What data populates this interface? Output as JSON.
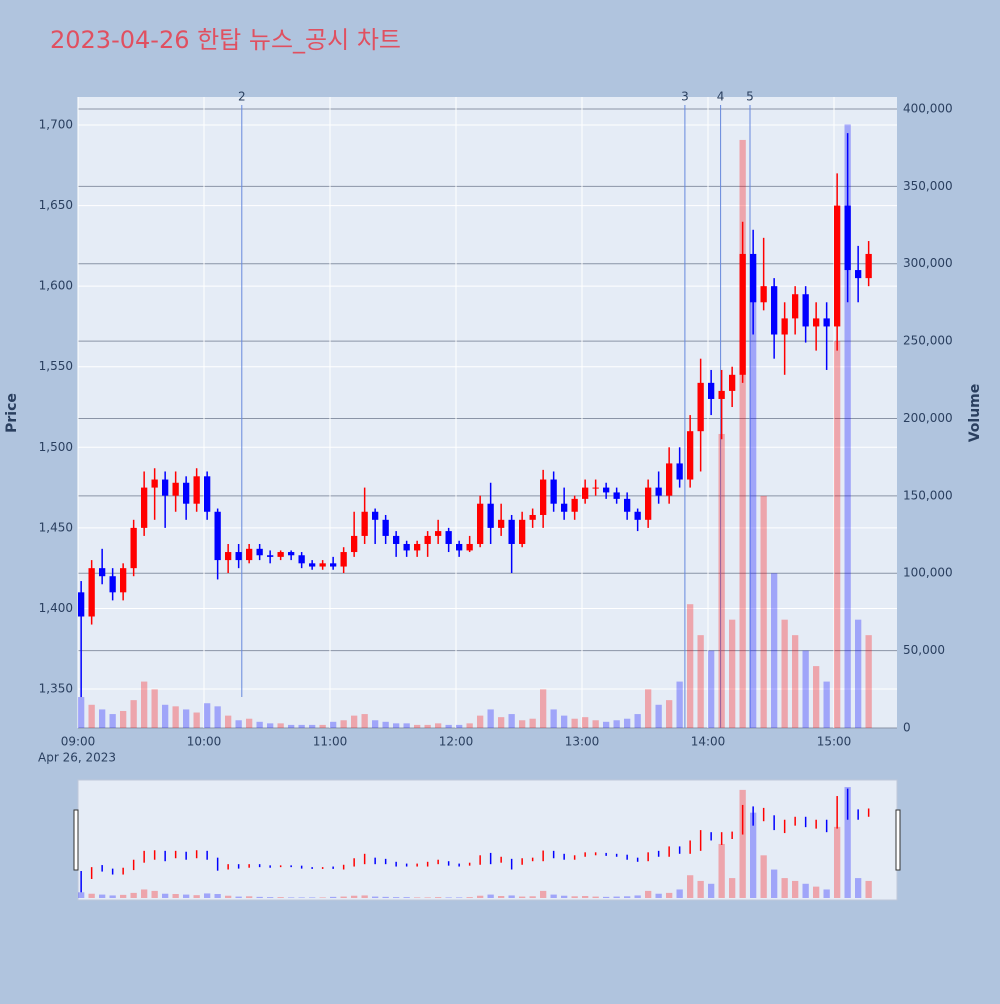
{
  "chart_data": {
    "type": "candlestick",
    "title": "2023-04-26 한탑 뉴스_공시 차트",
    "y_title": "Price",
    "y2_title": "Volume",
    "x_date_label": "Apr 26, 2023",
    "up_color": "#ff0000",
    "down_color": "#0000ff",
    "x": [
      "09:00",
      "09:05",
      "09:10",
      "09:15",
      "09:20",
      "09:25",
      "09:30",
      "09:35",
      "09:40",
      "09:45",
      "09:50",
      "09:55",
      "10:00",
      "10:05",
      "10:10",
      "10:15",
      "10:20",
      "10:25",
      "10:30",
      "10:35",
      "10:40",
      "10:45",
      "10:50",
      "10:55",
      "11:00",
      "11:05",
      "11:10",
      "11:15",
      "11:20",
      "11:25",
      "11:30",
      "11:35",
      "11:40",
      "11:45",
      "11:50",
      "11:55",
      "12:00",
      "12:05",
      "12:10",
      "12:15",
      "12:20",
      "12:25",
      "12:30",
      "12:35",
      "12:40",
      "12:45",
      "12:50",
      "12:55",
      "13:00",
      "13:05",
      "13:10",
      "13:15",
      "13:20",
      "13:25",
      "13:30",
      "13:35",
      "13:40",
      "13:45",
      "13:50",
      "13:55",
      "14:00",
      "14:05",
      "14:10",
      "14:15",
      "14:20",
      "14:25",
      "14:30",
      "14:35",
      "14:40",
      "14:45",
      "14:50",
      "14:55",
      "15:00",
      "15:05",
      "15:10",
      "15:15"
    ],
    "open": [
      1410,
      1395,
      1425,
      1420,
      1410,
      1425,
      1450,
      1475,
      1480,
      1470,
      1478,
      1465,
      1482,
      1460,
      1430,
      1435,
      1430,
      1437,
      1433,
      1432,
      1435,
      1433,
      1428,
      1426,
      1428,
      1426,
      1435,
      1445,
      1460,
      1455,
      1445,
      1440,
      1436,
      1440,
      1445,
      1448,
      1440,
      1436,
      1440,
      1465,
      1450,
      1455,
      1440,
      1455,
      1458,
      1480,
      1465,
      1460,
      1468,
      1475,
      1475,
      1472,
      1468,
      1460,
      1455,
      1475,
      1470,
      1490,
      1480,
      1510,
      1540,
      1530,
      1535,
      1545,
      1620,
      1590,
      1600,
      1570,
      1580,
      1595,
      1575,
      1580,
      1575,
      1650,
      1610,
      1605
    ],
    "high": [
      1417,
      1430,
      1437,
      1425,
      1428,
      1455,
      1485,
      1487,
      1485,
      1485,
      1482,
      1487,
      1485,
      1462,
      1440,
      1440,
      1440,
      1440,
      1436,
      1436,
      1436,
      1435,
      1430,
      1430,
      1432,
      1438,
      1460,
      1475,
      1462,
      1458,
      1448,
      1442,
      1442,
      1448,
      1455,
      1450,
      1442,
      1445,
      1470,
      1478,
      1465,
      1458,
      1460,
      1462,
      1486,
      1485,
      1475,
      1470,
      1480,
      1480,
      1478,
      1475,
      1472,
      1462,
      1480,
      1485,
      1500,
      1500,
      1520,
      1555,
      1548,
      1548,
      1550,
      1640,
      1635,
      1630,
      1605,
      1590,
      1600,
      1600,
      1590,
      1590,
      1670,
      1695,
      1625,
      1628
    ],
    "low": [
      1345,
      1390,
      1415,
      1405,
      1405,
      1420,
      1445,
      1455,
      1450,
      1460,
      1455,
      1460,
      1455,
      1418,
      1422,
      1425,
      1428,
      1430,
      1428,
      1430,
      1430,
      1425,
      1424,
      1424,
      1424,
      1422,
      1432,
      1440,
      1440,
      1440,
      1432,
      1432,
      1432,
      1432,
      1440,
      1435,
      1432,
      1435,
      1438,
      1440,
      1445,
      1422,
      1438,
      1450,
      1450,
      1460,
      1455,
      1455,
      1465,
      1470,
      1468,
      1465,
      1455,
      1448,
      1450,
      1465,
      1465,
      1475,
      1475,
      1485,
      1520,
      1505,
      1525,
      1540,
      1570,
      1585,
      1555,
      1545,
      1570,
      1565,
      1560,
      1548,
      1560,
      1590,
      1590,
      1600
    ],
    "close": [
      1395,
      1425,
      1420,
      1410,
      1425,
      1450,
      1475,
      1480,
      1470,
      1478,
      1465,
      1482,
      1460,
      1430,
      1435,
      1430,
      1437,
      1433,
      1432,
      1435,
      1433,
      1428,
      1426,
      1428,
      1426,
      1435,
      1445,
      1460,
      1455,
      1445,
      1440,
      1436,
      1440,
      1445,
      1448,
      1440,
      1436,
      1440,
      1465,
      1450,
      1455,
      1440,
      1455,
      1458,
      1480,
      1465,
      1460,
      1468,
      1475,
      1475,
      1472,
      1468,
      1460,
      1455,
      1475,
      1470,
      1490,
      1480,
      1510,
      1540,
      1530,
      1535,
      1545,
      1620,
      1590,
      1600,
      1570,
      1580,
      1595,
      1575,
      1580,
      1575,
      1650,
      1610,
      1605,
      1620
    ],
    "volume": [
      20000,
      15000,
      12000,
      9000,
      11000,
      18000,
      30000,
      25000,
      15000,
      14000,
      12000,
      10000,
      16000,
      14000,
      8000,
      5000,
      6000,
      4000,
      3000,
      3000,
      2000,
      2000,
      2000,
      2000,
      4000,
      5000,
      8000,
      9000,
      5000,
      4000,
      3000,
      3000,
      2000,
      2000,
      3000,
      2000,
      2000,
      3000,
      8000,
      12000,
      7000,
      9000,
      5000,
      6000,
      25000,
      12000,
      8000,
      6000,
      7000,
      5000,
      4000,
      5000,
      6000,
      9000,
      25000,
      15000,
      18000,
      30000,
      80000,
      60000,
      50000,
      190000,
      70000,
      380000,
      300000,
      150000,
      100000,
      70000,
      60000,
      50000,
      40000,
      30000,
      250000,
      390000,
      70000,
      60000
    ],
    "events": [
      {
        "label": "2",
        "x": "10:18"
      },
      {
        "label": "3",
        "x": "13:49"
      },
      {
        "label": "4",
        "x": "14:06"
      },
      {
        "label": "5",
        "x": "14:20"
      }
    ],
    "xlim": [
      "09:00",
      "15:30"
    ],
    "xticks": [
      "09:00",
      "10:00",
      "11:00",
      "12:00",
      "13:00",
      "14:00",
      "15:00"
    ],
    "ylim": [
      1325.8,
      1717.4
    ],
    "yticks": [
      {
        "value": 1350,
        "label": "1,350"
      },
      {
        "value": 1400,
        "label": "1,400"
      },
      {
        "value": 1450,
        "label": "1,450"
      },
      {
        "value": 1500,
        "label": "1,500"
      },
      {
        "value": 1550,
        "label": "1,550"
      },
      {
        "value": 1600,
        "label": "1,600"
      },
      {
        "value": 1650,
        "label": "1,650"
      },
      {
        "value": 1700,
        "label": "1,700"
      }
    ],
    "y2lim": [
      0,
      407750
    ],
    "y2ticks": [
      0,
      {
        "value": 50000,
        "label": "50,000"
      },
      {
        "value": 100000,
        "label": "100,000"
      },
      {
        "value": 150000,
        "label": "150,000"
      },
      {
        "value": 200000,
        "label": "200,000"
      },
      {
        "value": 250000,
        "label": "250,000"
      },
      {
        "value": 300000,
        "label": "300,000"
      },
      {
        "value": 350000,
        "label": "350,000"
      },
      {
        "value": 400000,
        "label": "400,000"
      }
    ]
  }
}
